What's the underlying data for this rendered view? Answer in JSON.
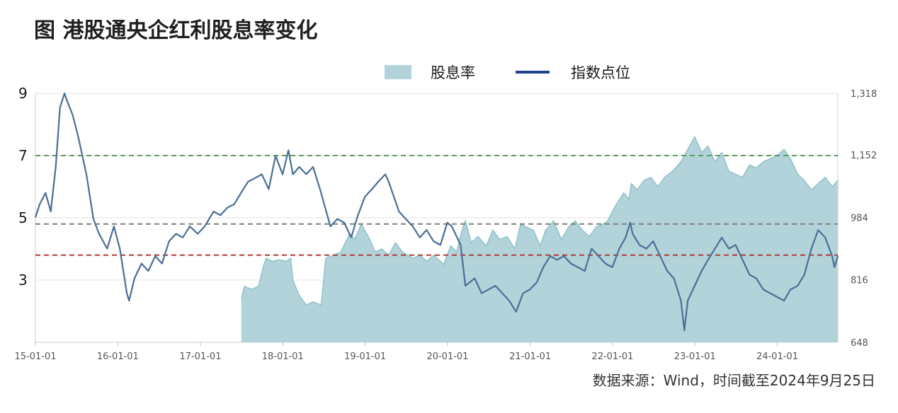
{
  "title": "图 港股通央企红利股息率变化",
  "source": "数据来源：Wind，时间截至2024年9月25日",
  "colors": {
    "area_fill": "#b3d3da",
    "area_stroke": "#8fc1ca",
    "line": "#4a6f96",
    "legend_line": "#1f3f8f",
    "ref_green": "#5a9e5a",
    "ref_gray": "#7f7f7f",
    "ref_red": "#b03a34",
    "grid": "#e3e3e3"
  },
  "chart_data": {
    "type": "area+line",
    "title": "图 港股通央企红利股息率变化",
    "legend": [
      {
        "name": "股息率",
        "style": "area"
      },
      {
        "name": "指数点位",
        "style": "line"
      }
    ],
    "legend_position": "top-center",
    "x_ticks": [
      "15-01-01",
      "16-01-01",
      "17-01-01",
      "18-01-01",
      "19-01-01",
      "20-01-01",
      "21-01-01",
      "22-01-01",
      "23-01-01",
      "24-01-01"
    ],
    "x_range": [
      "2015-01-01",
      "2024-09-25"
    ],
    "left_axis": {
      "ticks": [
        9,
        7,
        5,
        3
      ],
      "ylim": [
        1,
        9
      ]
    },
    "right_axis": {
      "ticks": [
        "1,318",
        "1,152",
        "984",
        "816",
        "648"
      ],
      "ylim": [
        648,
        1318
      ]
    },
    "reference_lines": [
      {
        "value": 7.0,
        "color": "green",
        "style": "dashed"
      },
      {
        "value": 4.8,
        "color": "gray",
        "style": "dashed"
      },
      {
        "value": 3.8,
        "color": "red",
        "style": "dashed"
      }
    ],
    "series": [
      {
        "name": "股息率",
        "axis": "left",
        "type": "area",
        "points": [
          [
            "2017-07-01",
            2.4
          ],
          [
            "2017-07-15",
            2.8
          ],
          [
            "2017-08-15",
            2.7
          ],
          [
            "2017-09-15",
            2.8
          ],
          [
            "2017-10-10",
            3.5
          ],
          [
            "2017-10-20",
            3.7
          ],
          [
            "2017-11-15",
            3.6
          ],
          [
            "2017-12-15",
            3.65
          ],
          [
            "2018-01-15",
            3.6
          ],
          [
            "2018-02-05",
            3.7
          ],
          [
            "2018-02-15",
            3.0
          ],
          [
            "2018-03-15",
            2.5
          ],
          [
            "2018-04-15",
            2.2
          ],
          [
            "2018-05-15",
            2.3
          ],
          [
            "2018-06-20",
            2.2
          ],
          [
            "2018-07-10",
            3.7
          ],
          [
            "2018-08-15",
            3.8
          ],
          [
            "2018-09-15",
            3.9
          ],
          [
            "2018-10-05",
            4.2
          ],
          [
            "2018-10-25",
            4.5
          ],
          [
            "2018-11-15",
            4.3
          ],
          [
            "2018-12-15",
            4.8
          ],
          [
            "2019-01-15",
            4.4
          ],
          [
            "2019-02-15",
            3.9
          ],
          [
            "2019-03-15",
            4.0
          ],
          [
            "2019-04-15",
            3.8
          ],
          [
            "2019-05-15",
            4.2
          ],
          [
            "2019-06-15",
            3.9
          ],
          [
            "2019-08-01",
            3.7
          ],
          [
            "2019-09-01",
            3.8
          ],
          [
            "2019-10-01",
            3.6
          ],
          [
            "2019-11-01",
            3.8
          ],
          [
            "2019-12-15",
            3.5
          ],
          [
            "2020-01-15",
            4.1
          ],
          [
            "2020-02-10",
            3.9
          ],
          [
            "2020-03-01",
            4.5
          ],
          [
            "2020-03-20",
            4.9
          ],
          [
            "2020-04-15",
            4.2
          ],
          [
            "2020-05-15",
            4.4
          ],
          [
            "2020-06-20",
            4.1
          ],
          [
            "2020-07-20",
            4.6
          ],
          [
            "2020-08-20",
            4.3
          ],
          [
            "2020-09-20",
            4.4
          ],
          [
            "2020-10-25",
            4.0
          ],
          [
            "2020-11-20",
            4.8
          ],
          [
            "2020-12-15",
            4.7
          ],
          [
            "2021-01-15",
            4.6
          ],
          [
            "2021-02-15",
            4.1
          ],
          [
            "2021-03-10",
            4.6
          ],
          [
            "2021-04-15",
            4.9
          ],
          [
            "2021-05-20",
            4.3
          ],
          [
            "2021-06-20",
            4.7
          ],
          [
            "2021-07-20",
            4.9
          ],
          [
            "2021-08-20",
            4.6
          ],
          [
            "2021-09-20",
            4.4
          ],
          [
            "2021-10-20",
            4.7
          ],
          [
            "2021-11-20",
            4.8
          ],
          [
            "2021-12-10",
            4.9
          ],
          [
            "2022-01-15",
            5.4
          ],
          [
            "2022-02-20",
            5.8
          ],
          [
            "2022-03-15",
            5.6
          ],
          [
            "2022-03-25",
            6.1
          ],
          [
            "2022-04-20",
            5.9
          ],
          [
            "2022-05-20",
            6.2
          ],
          [
            "2022-06-20",
            6.3
          ],
          [
            "2022-07-20",
            6.0
          ],
          [
            "2022-08-20",
            6.3
          ],
          [
            "2022-09-25",
            6.5
          ],
          [
            "2022-10-31",
            6.8
          ],
          [
            "2022-11-30",
            7.2
          ],
          [
            "2022-12-31",
            7.6
          ],
          [
            "2023-01-31",
            7.1
          ],
          [
            "2023-02-28",
            7.3
          ],
          [
            "2023-03-31",
            6.8
          ],
          [
            "2023-04-30",
            7.1
          ],
          [
            "2023-05-31",
            6.5
          ],
          [
            "2023-06-30",
            6.4
          ],
          [
            "2023-07-31",
            6.3
          ],
          [
            "2023-08-31",
            6.7
          ],
          [
            "2023-09-30",
            6.6
          ],
          [
            "2023-10-31",
            6.8
          ],
          [
            "2023-11-30",
            6.9
          ],
          [
            "2023-12-31",
            7.0
          ],
          [
            "2024-01-31",
            7.2
          ],
          [
            "2024-02-28",
            6.9
          ],
          [
            "2024-03-31",
            6.4
          ],
          [
            "2024-04-30",
            6.2
          ],
          [
            "2024-05-31",
            5.9
          ],
          [
            "2024-06-30",
            6.1
          ],
          [
            "2024-07-31",
            6.3
          ],
          [
            "2024-08-31",
            6.0
          ],
          [
            "2024-09-25",
            6.2
          ]
        ]
      },
      {
        "name": "指数点位",
        "axis": "right",
        "type": "line",
        "points": [
          [
            "2015-01-01",
            984
          ],
          [
            "2015-01-20",
            1020
          ],
          [
            "2015-02-15",
            1050
          ],
          [
            "2015-03-10",
            1000
          ],
          [
            "2015-04-01",
            1120
          ],
          [
            "2015-04-20",
            1280
          ],
          [
            "2015-05-10",
            1318
          ],
          [
            "2015-05-20",
            1300
          ],
          [
            "2015-06-15",
            1260
          ],
          [
            "2015-07-10",
            1200
          ],
          [
            "2015-08-15",
            1100
          ],
          [
            "2015-09-15",
            980
          ],
          [
            "2015-10-10",
            940
          ],
          [
            "2015-11-15",
            900
          ],
          [
            "2015-12-15",
            960
          ],
          [
            "2016-01-10",
            900
          ],
          [
            "2016-02-10",
            780
          ],
          [
            "2016-02-20",
            760
          ],
          [
            "2016-03-15",
            820
          ],
          [
            "2016-04-15",
            860
          ],
          [
            "2016-05-15",
            840
          ],
          [
            "2016-06-15",
            880
          ],
          [
            "2016-07-15",
            860
          ],
          [
            "2016-08-15",
            920
          ],
          [
            "2016-09-15",
            940
          ],
          [
            "2016-10-15",
            930
          ],
          [
            "2016-11-15",
            960
          ],
          [
            "2016-12-20",
            940
          ],
          [
            "2017-01-20",
            960
          ],
          [
            "2017-02-28",
            1000
          ],
          [
            "2017-03-31",
            990
          ],
          [
            "2017-04-30",
            1010
          ],
          [
            "2017-05-31",
            1020
          ],
          [
            "2017-06-30",
            1050
          ],
          [
            "2017-07-31",
            1080
          ],
          [
            "2017-08-31",
            1090
          ],
          [
            "2017-09-30",
            1100
          ],
          [
            "2017-10-31",
            1060
          ],
          [
            "2017-11-30",
            1150
          ],
          [
            "2017-12-31",
            1100
          ],
          [
            "2018-01-26",
            1165
          ],
          [
            "2018-02-15",
            1100
          ],
          [
            "2018-03-15",
            1120
          ],
          [
            "2018-04-15",
            1100
          ],
          [
            "2018-05-15",
            1120
          ],
          [
            "2018-06-15",
            1060
          ],
          [
            "2018-07-31",
            960
          ],
          [
            "2018-08-31",
            980
          ],
          [
            "2018-09-30",
            970
          ],
          [
            "2018-10-31",
            930
          ],
          [
            "2018-11-30",
            990
          ],
          [
            "2018-12-31",
            1040
          ],
          [
            "2019-01-31",
            1060
          ],
          [
            "2019-02-28",
            1080
          ],
          [
            "2019-03-31",
            1100
          ],
          [
            "2019-04-15",
            1080
          ],
          [
            "2019-05-31",
            1000
          ],
          [
            "2019-06-30",
            980
          ],
          [
            "2019-07-31",
            960
          ],
          [
            "2019-08-31",
            930
          ],
          [
            "2019-09-30",
            950
          ],
          [
            "2019-10-31",
            920
          ],
          [
            "2019-11-30",
            910
          ],
          [
            "2019-12-31",
            970
          ],
          [
            "2020-01-20",
            960
          ],
          [
            "2020-02-28",
            910
          ],
          [
            "2020-03-20",
            800
          ],
          [
            "2020-04-30",
            820
          ],
          [
            "2020-05-31",
            780
          ],
          [
            "2020-06-30",
            790
          ],
          [
            "2020-07-31",
            800
          ],
          [
            "2020-08-31",
            780
          ],
          [
            "2020-09-30",
            760
          ],
          [
            "2020-10-31",
            730
          ],
          [
            "2020-11-30",
            780
          ],
          [
            "2020-12-31",
            790
          ],
          [
            "2021-01-31",
            810
          ],
          [
            "2021-02-28",
            850
          ],
          [
            "2021-03-31",
            880
          ],
          [
            "2021-04-30",
            870
          ],
          [
            "2021-05-31",
            880
          ],
          [
            "2021-06-30",
            860
          ],
          [
            "2021-07-31",
            850
          ],
          [
            "2021-08-31",
            840
          ],
          [
            "2021-09-30",
            900
          ],
          [
            "2021-10-31",
            880
          ],
          [
            "2021-11-30",
            860
          ],
          [
            "2021-12-31",
            850
          ],
          [
            "2022-01-31",
            900
          ],
          [
            "2022-02-28",
            930
          ],
          [
            "2022-03-20",
            970
          ],
          [
            "2022-03-31",
            940
          ],
          [
            "2022-04-30",
            910
          ],
          [
            "2022-05-31",
            900
          ],
          [
            "2022-06-30",
            920
          ],
          [
            "2022-07-31",
            880
          ],
          [
            "2022-08-31",
            840
          ],
          [
            "2022-09-30",
            820
          ],
          [
            "2022-10-31",
            760
          ],
          [
            "2022-11-15",
            680
          ],
          [
            "2022-11-30",
            760
          ],
          [
            "2022-12-31",
            800
          ],
          [
            "2023-01-31",
            840
          ],
          [
            "2023-02-28",
            870
          ],
          [
            "2023-03-31",
            900
          ],
          [
            "2023-04-30",
            930
          ],
          [
            "2023-05-31",
            900
          ],
          [
            "2023-06-30",
            910
          ],
          [
            "2023-07-31",
            870
          ],
          [
            "2023-08-31",
            830
          ],
          [
            "2023-09-30",
            820
          ],
          [
            "2023-10-31",
            790
          ],
          [
            "2023-11-30",
            780
          ],
          [
            "2023-12-31",
            770
          ],
          [
            "2024-01-31",
            760
          ],
          [
            "2024-02-28",
            790
          ],
          [
            "2024-03-31",
            800
          ],
          [
            "2024-04-30",
            830
          ],
          [
            "2024-05-31",
            900
          ],
          [
            "2024-06-30",
            950
          ],
          [
            "2024-07-31",
            930
          ],
          [
            "2024-08-31",
            880
          ],
          [
            "2024-09-10",
            850
          ],
          [
            "2024-09-25",
            880
          ]
        ]
      }
    ]
  }
}
